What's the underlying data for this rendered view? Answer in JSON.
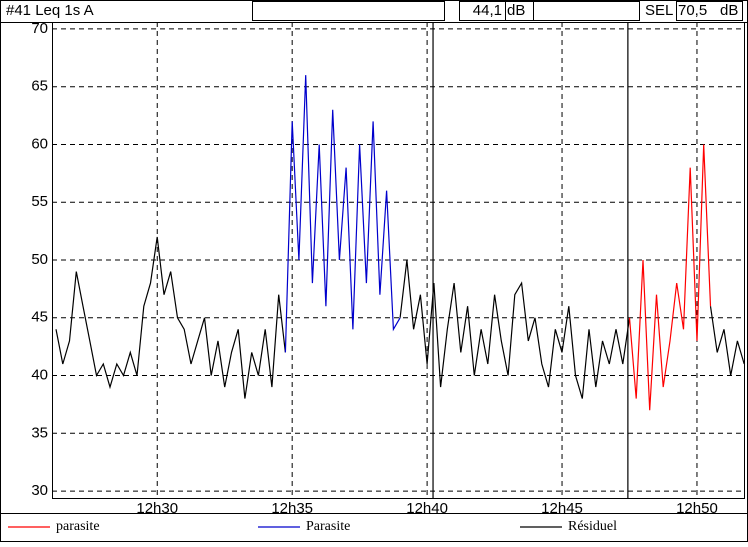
{
  "header": {
    "label": "#41  Leq 1s  A",
    "leq": "44,1",
    "leq_unit": "dB",
    "sel_label": "SEL",
    "sel": "70,5",
    "sel_unit": "dB"
  },
  "chart_data": {
    "type": "line",
    "x": [
      746.25,
      746.5,
      746.75,
      747,
      747.25,
      747.5,
      747.75,
      748,
      748.25,
      748.5,
      748.75,
      749,
      749.25,
      749.5,
      749.75,
      750,
      750.25,
      750.5,
      750.75,
      751,
      751.25,
      751.5,
      751.75,
      752,
      752.25,
      752.5,
      752.75,
      753,
      753.25,
      753.5,
      753.75,
      754,
      754.25,
      754.5,
      754.75,
      755,
      755.25,
      755.5,
      755.75,
      756,
      756.25,
      756.5,
      756.75,
      757,
      757.25,
      757.5,
      757.75,
      758,
      758.25,
      758.5,
      758.75,
      759,
      759.25,
      759.5,
      759.75,
      760,
      760.25,
      760.5,
      760.75,
      761,
      761.25,
      761.5,
      761.75,
      762,
      762.25,
      762.5,
      762.75,
      763,
      763.25,
      763.5,
      763.75,
      764,
      764.25,
      764.5,
      764.75,
      765,
      765.25,
      765.5,
      765.75,
      766,
      766.25,
      766.5,
      766.75,
      767,
      767.25,
      767.5,
      767.75,
      768,
      768.25,
      768.5,
      768.75,
      769,
      769.25,
      769.5,
      769.75,
      770,
      770.25,
      770.5,
      770.75,
      771,
      771.25,
      771.5,
      771.75
    ],
    "series": [
      {
        "name": "Résiduel",
        "color": "#000000",
        "values": [
          44,
          41,
          43,
          49,
          46,
          43,
          40,
          41,
          39,
          41,
          40,
          42,
          40,
          46,
          48,
          52,
          47,
          49,
          45,
          44,
          41,
          43,
          45,
          40,
          43,
          39,
          42,
          44,
          38,
          42,
          40,
          44,
          39,
          47,
          42,
          null,
          null,
          null,
          null,
          null,
          null,
          null,
          null,
          null,
          null,
          null,
          null,
          null,
          null,
          null,
          null,
          45,
          50,
          44,
          47,
          41,
          48,
          39,
          44,
          48,
          42,
          46,
          40,
          44,
          41,
          47,
          43,
          40,
          47,
          48,
          43,
          45,
          41,
          39,
          44,
          42,
          46,
          40,
          38,
          44,
          39,
          43,
          41,
          44,
          41,
          45,
          null,
          null,
          null,
          null,
          null,
          null,
          null,
          null,
          null,
          null,
          null,
          46,
          42,
          44,
          40,
          43,
          41
        ]
      },
      {
        "name": "Parasite",
        "color": "#0000cc",
        "values": [
          null,
          null,
          null,
          null,
          null,
          null,
          null,
          null,
          null,
          null,
          null,
          null,
          null,
          null,
          null,
          null,
          null,
          null,
          null,
          null,
          null,
          null,
          null,
          null,
          null,
          null,
          null,
          null,
          null,
          null,
          null,
          null,
          null,
          null,
          42,
          62,
          50,
          66,
          48,
          60,
          46,
          63,
          50,
          58,
          44,
          60,
          48,
          62,
          47,
          56,
          44,
          45,
          null,
          null,
          null,
          null,
          null,
          null,
          null,
          null,
          null,
          null,
          null,
          null,
          null,
          null,
          null,
          null,
          null,
          null,
          null,
          null,
          null,
          null,
          null,
          null,
          null,
          null,
          null,
          null,
          null,
          null,
          null,
          null,
          null,
          null,
          null,
          null,
          null,
          null,
          null,
          null,
          null,
          null,
          null,
          null,
          null,
          null,
          null,
          null,
          null,
          null,
          null
        ]
      },
      {
        "name": "parasite",
        "color": "#ff0000",
        "values": [
          null,
          null,
          null,
          null,
          null,
          null,
          null,
          null,
          null,
          null,
          null,
          null,
          null,
          null,
          null,
          null,
          null,
          null,
          null,
          null,
          null,
          null,
          null,
          null,
          null,
          null,
          null,
          null,
          null,
          null,
          null,
          null,
          null,
          null,
          null,
          null,
          null,
          null,
          null,
          null,
          null,
          null,
          null,
          null,
          null,
          null,
          null,
          null,
          null,
          null,
          null,
          null,
          null,
          null,
          null,
          null,
          null,
          null,
          null,
          null,
          null,
          null,
          null,
          null,
          null,
          null,
          null,
          null,
          null,
          null,
          null,
          null,
          null,
          null,
          null,
          null,
          null,
          null,
          null,
          null,
          null,
          null,
          null,
          null,
          null,
          45,
          38,
          50,
          37,
          47,
          39,
          43,
          48,
          44,
          58,
          43,
          60,
          46,
          null,
          null,
          null,
          null,
          null
        ]
      }
    ],
    "legend_order": [
      "parasite",
      "Parasite",
      "Résiduel"
    ],
    "xlim": [
      746.1,
      771.78
    ],
    "xticks": [
      {
        "value": 750,
        "label": "12h30"
      },
      {
        "value": 755,
        "label": "12h35"
      },
      {
        "value": 760,
        "label": "12h40"
      },
      {
        "value": 765,
        "label": "12h45"
      },
      {
        "value": 770,
        "label": "12h50"
      }
    ],
    "ylim": [
      29.4,
      70.6
    ],
    "yticks": [
      30,
      35,
      40,
      45,
      50,
      55,
      60,
      65,
      70
    ],
    "cursors": [
      760.22,
      767.44
    ],
    "grid": true
  }
}
